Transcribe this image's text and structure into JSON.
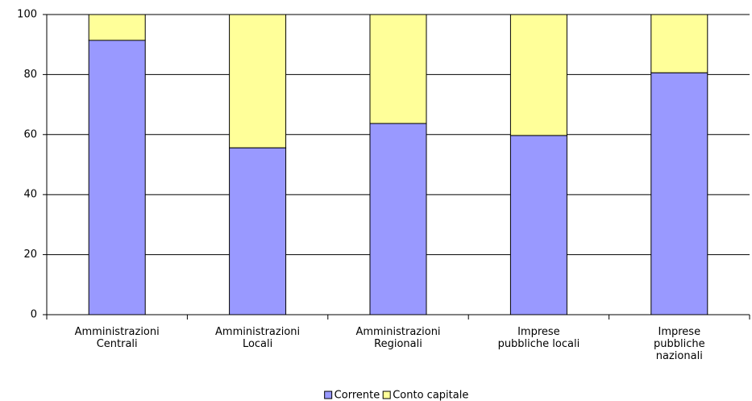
{
  "chart_data": {
    "type": "stacked_bar",
    "categories": [
      "Amministrazioni\nCentrali",
      "Amministrazioni\nLocali",
      "Amministrazioni\nRegionali",
      "Imprese\npubbliche locali",
      "Imprese\npubbliche\nnazionali"
    ],
    "series": [
      {
        "name": "Corrente",
        "color": "#9999ff",
        "values": [
          91.4,
          55.6,
          63.7,
          59.7,
          80.6
        ]
      },
      {
        "name": "Conto capitale",
        "color": "#ffff99",
        "values": [
          8.6,
          44.4,
          36.3,
          40.3,
          19.4
        ]
      }
    ],
    "ylim": [
      0,
      100
    ],
    "yticks": [
      0,
      20,
      40,
      60,
      80,
      100
    ],
    "grid": true,
    "legend": "bottom"
  }
}
